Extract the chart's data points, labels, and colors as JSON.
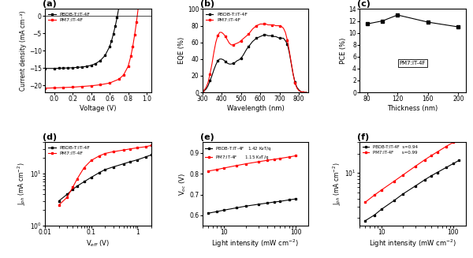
{
  "panel_a": {
    "title": "(a)",
    "xlabel": "Voltage (V)",
    "ylabel": "Current density (mA cm⁻²)",
    "xlim": [
      -0.1,
      1.05
    ],
    "ylim": [
      -22,
      2
    ],
    "pbdb_x": [
      -0.1,
      0.0,
      0.05,
      0.1,
      0.15,
      0.2,
      0.25,
      0.3,
      0.35,
      0.4,
      0.45,
      0.5,
      0.55,
      0.6,
      0.62,
      0.64,
      0.66,
      0.68,
      0.7,
      0.72
    ],
    "pbdb_y": [
      -15.1,
      -15.1,
      -15.05,
      -15.0,
      -14.95,
      -14.9,
      -14.8,
      -14.7,
      -14.5,
      -14.2,
      -13.7,
      -12.8,
      -11.4,
      -8.8,
      -7.2,
      -5.2,
      -3.0,
      -0.5,
      2.5,
      5.5
    ],
    "pm7_x": [
      -0.1,
      0.0,
      0.1,
      0.2,
      0.3,
      0.4,
      0.5,
      0.6,
      0.7,
      0.75,
      0.8,
      0.83,
      0.85,
      0.87,
      0.89,
      0.91,
      0.93,
      0.95,
      0.97,
      1.0
    ],
    "pm7_y": [
      -20.8,
      -20.7,
      -20.6,
      -20.5,
      -20.3,
      -20.1,
      -19.8,
      -19.3,
      -18.2,
      -17.0,
      -14.5,
      -11.5,
      -8.8,
      -5.5,
      -1.8,
      2.5,
      7.5,
      13.0,
      19.0,
      27.0
    ],
    "colors": [
      "black",
      "red"
    ],
    "labels": [
      "PBDB-T:IT-4F",
      "PM7:IT-4F"
    ]
  },
  "panel_b": {
    "title": "(b)",
    "xlabel": "Wavelength (nm)",
    "ylabel": "EQE (%)",
    "xlim": [
      300,
      850
    ],
    "ylim": [
      0,
      100
    ],
    "pbdb_wl": [
      300,
      310,
      320,
      330,
      340,
      350,
      360,
      370,
      380,
      390,
      400,
      410,
      420,
      430,
      440,
      450,
      460,
      470,
      480,
      490,
      500,
      510,
      520,
      530,
      540,
      550,
      560,
      570,
      580,
      590,
      600,
      610,
      620,
      630,
      640,
      650,
      660,
      670,
      680,
      690,
      700,
      710,
      720,
      730,
      740,
      750,
      760,
      770,
      780,
      790,
      800,
      810,
      820,
      830,
      840
    ],
    "pbdb_eqe": [
      1,
      2,
      4,
      8,
      14,
      20,
      27,
      33,
      38,
      40,
      40,
      39,
      37,
      35,
      34,
      34,
      35,
      36,
      38,
      39,
      41,
      44,
      48,
      52,
      55,
      58,
      61,
      63,
      65,
      66,
      67,
      68,
      69,
      69,
      68,
      68,
      68,
      67,
      67,
      66,
      65,
      65,
      65,
      62,
      58,
      48,
      35,
      22,
      12,
      6,
      3,
      1,
      0,
      0,
      0
    ],
    "pm7_wl": [
      300,
      310,
      320,
      330,
      340,
      350,
      360,
      370,
      380,
      390,
      400,
      410,
      420,
      430,
      440,
      450,
      460,
      470,
      480,
      490,
      500,
      510,
      520,
      530,
      540,
      550,
      560,
      570,
      580,
      590,
      600,
      610,
      620,
      630,
      640,
      650,
      660,
      670,
      680,
      690,
      700,
      710,
      720,
      730,
      740,
      750,
      760,
      770,
      780,
      790,
      800,
      810,
      820,
      830,
      840
    ],
    "pm7_eqe": [
      1,
      3,
      6,
      12,
      22,
      34,
      48,
      60,
      68,
      72,
      72,
      70,
      67,
      63,
      59,
      57,
      57,
      58,
      59,
      60,
      62,
      64,
      66,
      68,
      70,
      73,
      76,
      78,
      80,
      81,
      82,
      82,
      82,
      82,
      81,
      81,
      81,
      81,
      80,
      80,
      80,
      79,
      77,
      72,
      63,
      50,
      36,
      22,
      11,
      5,
      2,
      1,
      0,
      0,
      0
    ],
    "colors": [
      "black",
      "red"
    ],
    "labels": [
      "PBDB-T:IT-4F",
      "PM7:IT-4F"
    ]
  },
  "panel_c": {
    "title": "(c)",
    "xlabel": "Thickness (nm)",
    "ylabel": "PCE (%)",
    "xlim": [
      70,
      210
    ],
    "ylim": [
      0,
      14
    ],
    "thickness": [
      80,
      100,
      120,
      160,
      200
    ],
    "pce": [
      11.5,
      12.0,
      13.0,
      11.8,
      11.0
    ],
    "color": "black",
    "label": "PM7:IT-4F",
    "xticks": [
      80,
      120,
      160,
      200
    ],
    "yticks": [
      0,
      2,
      4,
      6,
      8,
      10,
      12,
      14
    ]
  },
  "panel_d": {
    "title": "(d)",
    "xlabel": "V$_{eff}$ (V)",
    "ylabel": "J$_{ph}$ (mA cm$^{-2}$)",
    "xlim": [
      0.01,
      2.0
    ],
    "ylim": [
      1.0,
      40
    ],
    "pbdb_v": [
      0.02,
      0.03,
      0.04,
      0.05,
      0.07,
      0.1,
      0.15,
      0.2,
      0.3,
      0.5,
      0.7,
      1.0,
      1.5,
      2.0
    ],
    "pbdb_j": [
      3.0,
      4.0,
      5.0,
      5.8,
      7.0,
      8.5,
      10.5,
      12.0,
      13.5,
      15.5,
      17.0,
      18.5,
      21.0,
      23.0
    ],
    "pm7_v": [
      0.02,
      0.03,
      0.04,
      0.05,
      0.07,
      0.1,
      0.15,
      0.2,
      0.3,
      0.5,
      0.7,
      1.0,
      1.5,
      2.0
    ],
    "pm7_j": [
      2.5,
      3.5,
      5.5,
      8.0,
      13.0,
      18.0,
      22.0,
      24.5,
      26.5,
      28.5,
      30.0,
      31.5,
      33.0,
      35.0
    ],
    "colors": [
      "black",
      "red"
    ],
    "labels": [
      "PBDB-T:IT-4F",
      "PM7:IT-4F"
    ]
  },
  "panel_e": {
    "title": "(e)",
    "xlabel": "Light intensity (mW cm$^{-2}$)",
    "ylabel": "V$_{oc}$ (V)",
    "xlim": [
      5,
      150
    ],
    "ylim": [
      0.55,
      0.95
    ],
    "pbdb_intensity": [
      6,
      8,
      10,
      15,
      20,
      30,
      40,
      50,
      60,
      80,
      100
    ],
    "pbdb_voc": [
      0.61,
      0.618,
      0.625,
      0.636,
      0.644,
      0.653,
      0.659,
      0.664,
      0.667,
      0.674,
      0.679
    ],
    "pm7_intensity": [
      6,
      8,
      10,
      15,
      20,
      30,
      40,
      50,
      60,
      80,
      100
    ],
    "pm7_voc": [
      0.812,
      0.82,
      0.827,
      0.839,
      0.847,
      0.857,
      0.864,
      0.869,
      0.873,
      0.88,
      0.886
    ],
    "colors": [
      "black",
      "red"
    ],
    "labels": [
      "PBDB-T:IT-4F   1.42 K$_B$T/q",
      "PM7:IT-4F      1.15 K$_B$T/q"
    ],
    "yticks": [
      0.6,
      0.7,
      0.8,
      0.9
    ]
  },
  "panel_f": {
    "title": "(f)",
    "xlabel": "Light intensity (mW cm$^{-2}$)",
    "ylabel": "J$_{ph}$ (mA cm$^{-2}$)",
    "xlim": [
      5,
      150
    ],
    "ylim": [
      1.5,
      30
    ],
    "pbdb_intensity": [
      6,
      8,
      10,
      15,
      20,
      30,
      40,
      50,
      60,
      80,
      100,
      120
    ],
    "pbdb_jph": [
      1.8,
      2.2,
      2.7,
      3.7,
      4.7,
      6.3,
      7.8,
      9.1,
      10.2,
      12.2,
      14.0,
      15.7
    ],
    "pm7_intensity": [
      6,
      8,
      10,
      15,
      20,
      30,
      40,
      50,
      60,
      80,
      100,
      120
    ],
    "pm7_jph": [
      3.5,
      4.5,
      5.4,
      7.4,
      9.3,
      12.8,
      16.0,
      18.8,
      21.3,
      26.0,
      30.0,
      34.0
    ],
    "colors": [
      "black",
      "red"
    ],
    "labels": [
      "PBDB-T:IT-4F  s=0.94",
      "PM7:IT-4F      s=0.99"
    ]
  }
}
